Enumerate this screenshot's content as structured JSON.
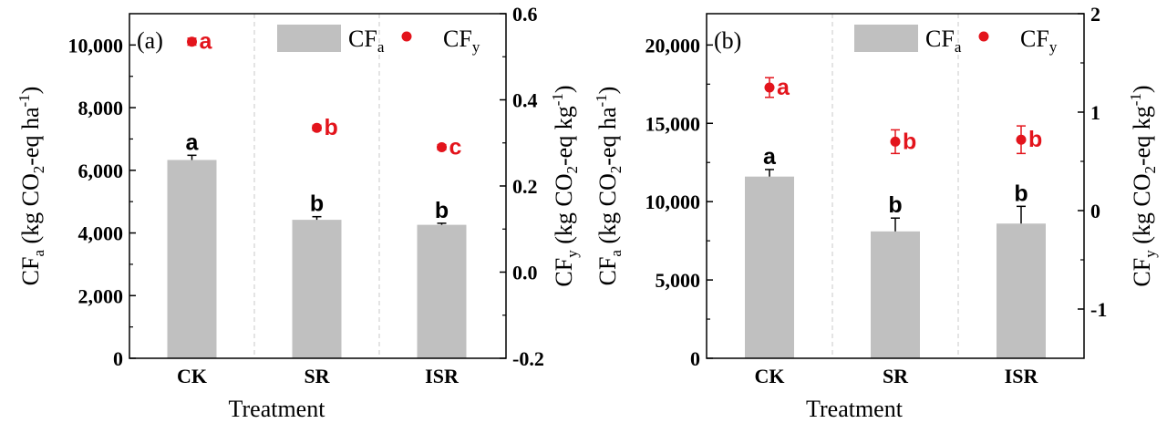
{
  "chart_data": [
    {
      "type": "bar",
      "panel_label": "(a)",
      "categories": [
        "CK",
        "SR",
        "ISR"
      ],
      "xlabel": "Treatment",
      "bar_series": {
        "name": "CF",
        "sub": "a",
        "color": "#c0c0c0",
        "values": [
          6330,
          4420,
          4260
        ],
        "errors": [
          150,
          100,
          50
        ],
        "letters": [
          "a",
          "b",
          "b"
        ]
      },
      "point_series": {
        "name": "CF",
        "sub": "y",
        "color": "#e3141c",
        "values": [
          0.535,
          0.335,
          0.29
        ],
        "errors": [
          0.008,
          0.006,
          0.006
        ],
        "letters": [
          "a",
          "b",
          "c"
        ]
      },
      "left_axis": {
        "ylim": [
          0,
          11000
        ],
        "ticks": [
          0,
          2000,
          4000,
          6000,
          8000,
          10000
        ],
        "tick_labels": [
          "0",
          "2,000",
          "4,000",
          "6,000",
          "8,000",
          "10,000"
        ],
        "label_parts": [
          "CF",
          "a",
          " (kg CO",
          "2",
          "-eq ha",
          "-1",
          ")"
        ]
      },
      "right_axis": {
        "ylim": [
          -0.2,
          0.6
        ],
        "ticks": [
          -0.2,
          0.0,
          0.2,
          0.4,
          0.6
        ],
        "tick_labels": [
          "-0.2",
          "0.0",
          "0.2",
          "0.4",
          "0.6"
        ],
        "label_parts": [
          "CF",
          "y",
          " (kg CO",
          "2",
          "-eq kg",
          "-1",
          ")"
        ]
      }
    },
    {
      "type": "bar",
      "panel_label": "(b)",
      "categories": [
        "CK",
        "SR",
        "ISR"
      ],
      "xlabel": "Treatment",
      "bar_series": {
        "name": "CF",
        "sub": "a",
        "color": "#c0c0c0",
        "values": [
          11600,
          8100,
          8600
        ],
        "errors": [
          450,
          850,
          1100
        ],
        "letters": [
          "a",
          "b",
          "b"
        ]
      },
      "point_series": {
        "name": "CF",
        "sub": "y",
        "color": "#e3141c",
        "values": [
          1.25,
          0.7,
          0.72
        ],
        "errors": [
          0.1,
          0.12,
          0.14
        ],
        "letters": [
          "a",
          "b",
          "b"
        ]
      },
      "left_axis": {
        "ylim": [
          0,
          22000
        ],
        "ticks": [
          0,
          5000,
          10000,
          15000,
          20000
        ],
        "tick_labels": [
          "0",
          "5,000",
          "10,000",
          "15,000",
          "20,000"
        ],
        "label_parts": [
          "CF",
          "a",
          " (kg CO",
          "2",
          "-eq ha",
          "-1",
          ")"
        ]
      },
      "right_axis": {
        "ylim": [
          -1.5,
          2
        ],
        "ticks": [
          -1,
          0,
          1,
          2
        ],
        "tick_labels": [
          "-1",
          "0",
          "1",
          "2"
        ],
        "label_parts": [
          "CF",
          "y",
          " (kg CO",
          "2",
          "-eq kg",
          "-1",
          ")"
        ]
      }
    }
  ]
}
